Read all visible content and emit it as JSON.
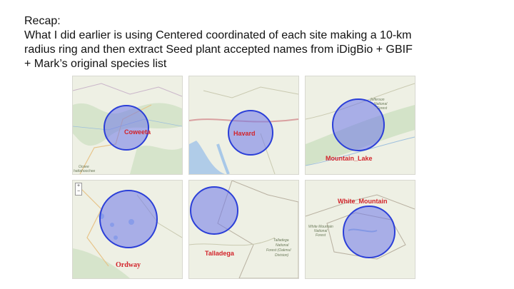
{
  "slide": {
    "title": "Recap:",
    "lines": [
      "What I did earlier is using Centered coordinated of each site making a 10-km",
      "radius ring and then extract Seed plant accepted names from iDigBio + GBIF",
      "+ Mark’s original species list"
    ]
  },
  "maps": [
    {
      "site": "Coweeta",
      "extra": [
        "hattahoochee",
        "Ocoee"
      ]
    },
    {
      "site": "Havard",
      "extra": []
    },
    {
      "site": "Mountain_Lake",
      "extra": [
        "Jefferson",
        "National",
        "Forest"
      ]
    },
    {
      "site": "Ordway",
      "extra": [],
      "zoom_in": "+",
      "zoom_out": "−"
    },
    {
      "site": "Talladega",
      "extra": [
        "Talladega",
        "National",
        "Forest (Oakmul",
        "Division)"
      ]
    },
    {
      "site": "White_Mountain",
      "extra": [
        "White Mountain",
        "National",
        "Forest"
      ]
    }
  ],
  "colors": {
    "ring_fill": "#6f79ea",
    "ring_stroke": "#2b3fd8",
    "label": "#d2232a",
    "map_bg": "#eef0e4"
  }
}
